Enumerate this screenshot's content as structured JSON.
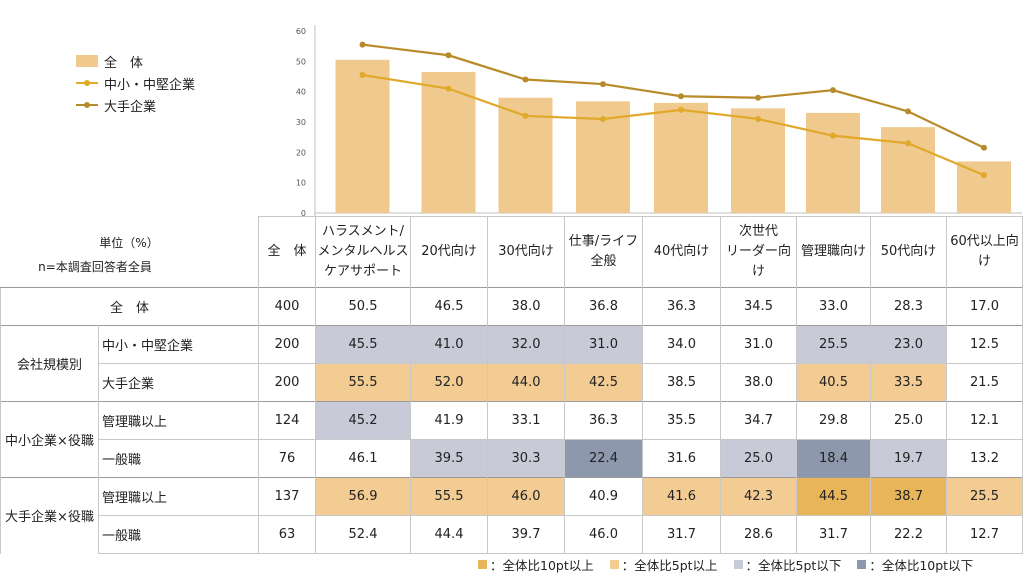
{
  "chart_data": {
    "type": "bar",
    "categories": [
      "ハラスメント/メンタルヘルスケアサポート",
      "20代向け",
      "30代向け",
      "仕事/ライフ全般",
      "40代向け",
      "次世代リーダー向け",
      "管理職向け",
      "50代向け",
      "60代以上向け"
    ],
    "series": [
      {
        "name": "全　体",
        "kind": "bar",
        "values": [
          50.5,
          46.5,
          38.0,
          36.8,
          36.3,
          34.5,
          33.0,
          28.3,
          17.0
        ]
      },
      {
        "name": "中小・中堅企業",
        "kind": "line",
        "values": [
          45.5,
          41.0,
          32.0,
          31.0,
          34.0,
          31.0,
          25.5,
          23.0,
          12.5
        ]
      },
      {
        "name": "大手企業",
        "kind": "line",
        "values": [
          55.5,
          52.0,
          44.0,
          42.5,
          38.5,
          38.0,
          40.5,
          33.5,
          21.5
        ]
      }
    ],
    "ylim": [
      0,
      60
    ],
    "yticks": [
      0,
      10,
      20,
      30,
      40,
      50,
      60
    ],
    "legend_position": "top-left",
    "grid": false
  },
  "colors": {
    "bar": "#f0c98e",
    "line_small": "#e0a92a",
    "line_large": "#b88b2a",
    "hi10": "#e8b55a",
    "hi5": "#f3cc93",
    "lo5": "#c9cad8",
    "lo10": "#8e98ad"
  },
  "table": {
    "unit_label": "単位（%）",
    "n_label": "n=本調査回答者全員",
    "n_header": "全　体",
    "col_headers": [
      [
        "ハラスメント/",
        "メンタルヘルス",
        "ケアサポート"
      ],
      [
        "20代向け"
      ],
      [
        "30代向け"
      ],
      [
        "仕事/ライフ",
        "全般"
      ],
      [
        "40代向け"
      ],
      [
        "次世代",
        "リーダー向",
        "け"
      ],
      [
        "管理職向け"
      ],
      [
        "50代向け"
      ],
      [
        "60代以上向",
        "け"
      ]
    ],
    "rows": [
      {
        "group": "全　体",
        "label": "",
        "n": "400",
        "values": [
          "50.5",
          "46.5",
          "38.0",
          "36.8",
          "36.3",
          "34.5",
          "33.0",
          "28.3",
          "17.0"
        ],
        "hl": [
          "",
          "",
          "",
          "",
          "",
          "",
          "",
          "",
          ""
        ]
      },
      {
        "group": "会社規模別",
        "label": "中小・中堅企業",
        "n": "200",
        "values": [
          "45.5",
          "41.0",
          "32.0",
          "31.0",
          "34.0",
          "31.0",
          "25.5",
          "23.0",
          "12.5"
        ],
        "hl": [
          "lo5",
          "lo5",
          "lo5",
          "lo5",
          "",
          "",
          "lo5",
          "lo5",
          ""
        ]
      },
      {
        "group": "会社規模別",
        "label": "大手企業",
        "n": "200",
        "values": [
          "55.5",
          "52.0",
          "44.0",
          "42.5",
          "38.5",
          "38.0",
          "40.5",
          "33.5",
          "21.5"
        ],
        "hl": [
          "hi5",
          "hi5",
          "hi5",
          "hi5",
          "",
          "",
          "hi5",
          "hi5",
          ""
        ]
      },
      {
        "group": "中小企業×役職",
        "label": "管理職以上",
        "n": "124",
        "values": [
          "45.2",
          "41.9",
          "33.1",
          "36.3",
          "35.5",
          "34.7",
          "29.8",
          "25.0",
          "12.1"
        ],
        "hl": [
          "lo5",
          "",
          "",
          "",
          "",
          "",
          "",
          "",
          ""
        ]
      },
      {
        "group": "中小企業×役職",
        "label": "一般職",
        "n": "76",
        "values": [
          "46.1",
          "39.5",
          "30.3",
          "22.4",
          "31.6",
          "25.0",
          "18.4",
          "19.7",
          "13.2"
        ],
        "hl": [
          "",
          "lo5",
          "lo5",
          "lo10",
          "",
          "lo5",
          "lo10",
          "lo5",
          ""
        ]
      },
      {
        "group": "大手企業×役職",
        "label": "管理職以上",
        "n": "137",
        "values": [
          "56.9",
          "55.5",
          "46.0",
          "40.9",
          "41.6",
          "42.3",
          "44.5",
          "38.7",
          "25.5"
        ],
        "hl": [
          "hi5",
          "hi5",
          "hi5",
          "",
          "hi5",
          "hi5",
          "hi10",
          "hi10",
          "hi5"
        ]
      },
      {
        "group": "大手企業×役職",
        "label": "一般職",
        "n": "63",
        "values": [
          "52.4",
          "44.4",
          "39.7",
          "46.0",
          "31.7",
          "28.6",
          "31.7",
          "22.2",
          "12.7"
        ],
        "hl": [
          "",
          "",
          "",
          "",
          "",
          "",
          "",
          "",
          ""
        ]
      }
    ]
  },
  "key": [
    {
      "cls": "hi10",
      "label": "：全体比10pt以上"
    },
    {
      "cls": "hi5",
      "label": "：全体比5pt以上"
    },
    {
      "cls": "lo5",
      "label": "：全体比5pt以下"
    },
    {
      "cls": "lo10",
      "label": "：全体比10pt以下"
    }
  ]
}
